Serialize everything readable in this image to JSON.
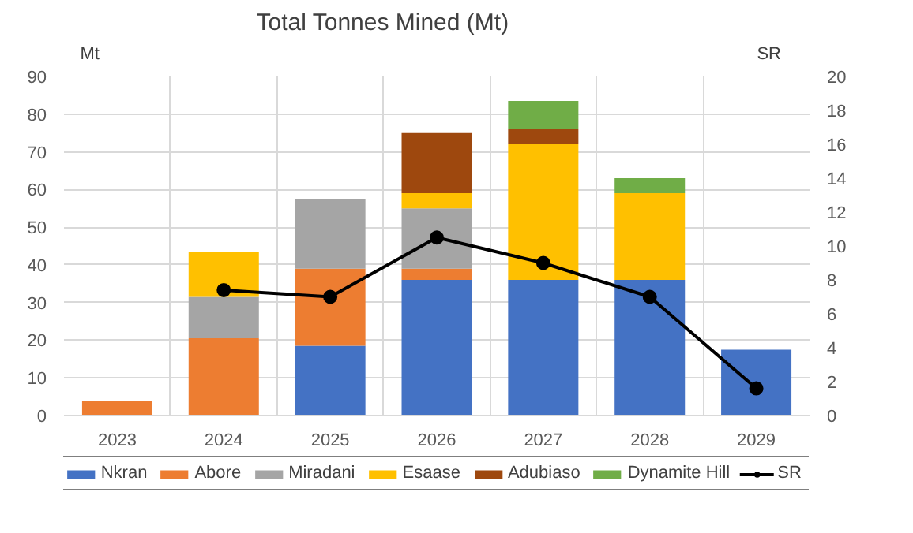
{
  "chart_data": {
    "type": "bar",
    "title": "Total Tonnes Mined (Mt)",
    "ylabel": "Mt",
    "y2label": "SR",
    "stacked": true,
    "categories": [
      "2023",
      "2024",
      "2025",
      "2026",
      "2027",
      "2028",
      "2029"
    ],
    "series": [
      {
        "name": "Nkran",
        "color": "#4472c4",
        "values": [
          null,
          null,
          18.5,
          36,
          36,
          36,
          17.5
        ]
      },
      {
        "name": "Abore",
        "color": "#ed7d31",
        "values": [
          4,
          20.5,
          20.5,
          3,
          null,
          null,
          null
        ]
      },
      {
        "name": "Miradani",
        "color": "#a5a5a5",
        "values": [
          null,
          11,
          18.5,
          16,
          null,
          null,
          null
        ]
      },
      {
        "name": "Esaase",
        "color": "#ffc000",
        "values": [
          null,
          12,
          null,
          4,
          36,
          23,
          null
        ]
      },
      {
        "name": "Adubiaso",
        "color": "#9e480e",
        "values": [
          null,
          null,
          null,
          16,
          4,
          null,
          null
        ]
      },
      {
        "name": "Dynamite Hill",
        "color": "#70ad47",
        "values": [
          null,
          null,
          null,
          null,
          7.5,
          4,
          null
        ]
      },
      {
        "name": "SR",
        "type": "line",
        "axis": "y2",
        "color": "#000000",
        "marker": "circle",
        "values": [
          null,
          7.4,
          7.0,
          10.5,
          9.0,
          7.0,
          1.6
        ]
      }
    ],
    "ylim": [
      0,
      90
    ],
    "yticks": [
      0,
      10,
      20,
      30,
      40,
      50,
      60,
      70,
      80,
      90
    ],
    "y2lim": [
      0,
      20
    ],
    "y2ticks": [
      0,
      2,
      4,
      6,
      8,
      10,
      12,
      14,
      16,
      18,
      20
    ],
    "grid": true,
    "legend": "bottom"
  }
}
